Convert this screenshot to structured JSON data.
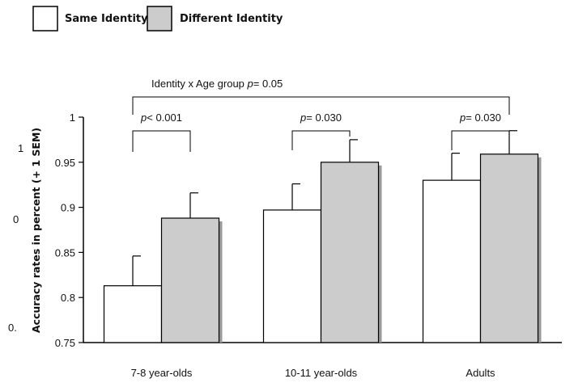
{
  "chart_data": {
    "type": "bar",
    "title": "",
    "xlabel": "",
    "ylabel": "Accuracy rates in percent (+ 1 SEM)",
    "ylim": [
      0.75,
      1
    ],
    "yticks": [
      "0.75",
      "0.8",
      "0.85",
      "0.9",
      "0.95",
      "1"
    ],
    "categories": [
      "7-8 year-olds",
      "10-11 year-olds",
      "Adults"
    ],
    "series": [
      {
        "name": "Same Identity",
        "color": "#ffffff",
        "values": [
          0.813,
          0.897,
          0.93
        ],
        "errors": [
          0.033,
          0.029,
          0.03
        ]
      },
      {
        "name": "Different Identity",
        "color": "#cccccc",
        "values": [
          0.888,
          0.95,
          0.959
        ],
        "errors": [
          0.028,
          0.025,
          0.026
        ]
      }
    ],
    "annotations": {
      "interaction": "Identity x Age group p= 0.05",
      "pairs": [
        "p< 0.001",
        "p= 0.030",
        "p= 0.030"
      ]
    },
    "grid": false,
    "legend_position": "top-left"
  },
  "stray_labels": [
    "1",
    "0",
    "0."
  ]
}
